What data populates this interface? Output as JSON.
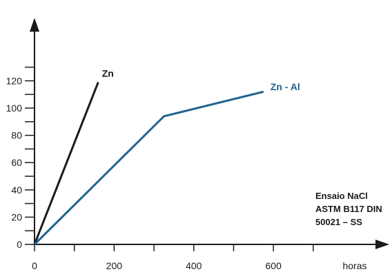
{
  "chart_data": {
    "type": "line",
    "x_ticks": [
      0,
      200,
      400,
      600
    ],
    "x_minor_ticks": [
      100,
      300,
      500,
      700
    ],
    "x_unit_label": "horas",
    "y_ticks": [
      0,
      20,
      40,
      60,
      80,
      100,
      120
    ],
    "y_minor_ticks": [
      10,
      30,
      50,
      70,
      90,
      110,
      130
    ],
    "xlim": [
      0,
      800
    ],
    "ylim": [
      0,
      140
    ],
    "grid": false,
    "series": [
      {
        "name": "Zn",
        "color": "#1a1a1a",
        "points": [
          [
            0,
            0
          ],
          [
            160,
            119
          ]
        ]
      },
      {
        "name": "Zn - Al",
        "color": "#1f6390",
        "points": [
          [
            0,
            0
          ],
          [
            325,
            94
          ],
          [
            575,
            112
          ]
        ]
      }
    ],
    "annotation": [
      "Ensaio NaCl",
      "ASTM B117 DIN",
      "50021 – SS"
    ]
  }
}
